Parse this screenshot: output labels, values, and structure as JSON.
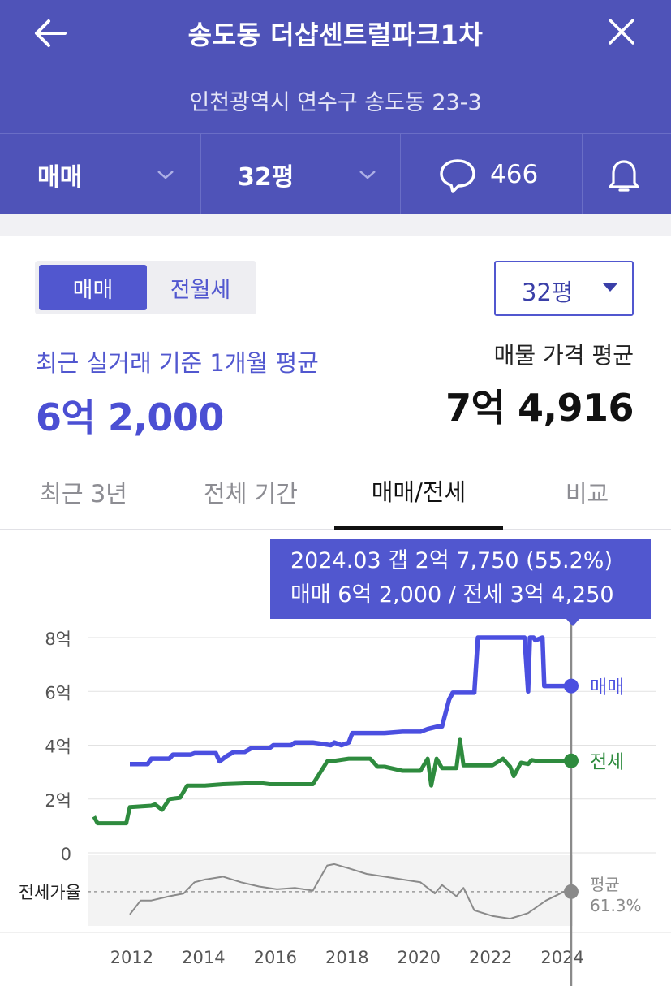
{
  "header": {
    "title": "송도동 더샵센트럴파크1차",
    "address": "인천광역시 연수구 송도동 23-3",
    "trade_select": "매매",
    "size_select": "32평",
    "comment_count": "466"
  },
  "segment": {
    "sale": "매매",
    "rent": "전월세"
  },
  "size_dropdown": "32평",
  "summary": {
    "recent_label": "최근 실거래 기준 1개월 평균",
    "recent_value": "6억 2,000",
    "listing_label": "매물 가격 평균",
    "listing_value": "7억 4,916"
  },
  "tabs": [
    "최근 3년",
    "전체 기간",
    "매매/전세",
    "비교"
  ],
  "tooltip": {
    "line1": "2024.03  갭 2억 7,750 (55.2%)",
    "line2": "매매 6억 2,000 / 전세 3억 4,250"
  },
  "colors": {
    "brand": "#4f53b8",
    "sale": "#4b4fe0",
    "jeonse": "#2e8b3e",
    "ratio": "#8a8a8a"
  },
  "chart_data": {
    "type": "line",
    "y_tick_labels": [
      "8억",
      "6억",
      "4억",
      "2억",
      "0"
    ],
    "x_tick_labels": [
      "2012",
      "2014",
      "2016",
      "2018",
      "2020",
      "2022",
      "2024"
    ],
    "ylim": [
      0,
      8
    ],
    "y_unit": "억",
    "ratio_label": "전세가율",
    "series": [
      {
        "name": "매매",
        "x": [
          2011.9,
          2012.4,
          2012.5,
          2013.0,
          2013.1,
          2013.6,
          2013.7,
          2014.3,
          2014.4,
          2014.6,
          2014.8,
          2015.1,
          2015.3,
          2015.8,
          2015.9,
          2016.4,
          2016.5,
          2017.0,
          2017.5,
          2017.6,
          2017.8,
          2018.0,
          2018.1,
          2019.0,
          2019.5,
          2020.0,
          2020.2,
          2020.5,
          2020.6,
          2020.8,
          2020.9,
          2021.5,
          2021.6,
          2022.0,
          2022.5,
          2022.9,
          2023.0,
          2023.05,
          2023.15,
          2023.2,
          2023.4,
          2023.45,
          2023.6,
          2024.0,
          2024.2
        ],
        "y": [
          3.3,
          3.3,
          3.5,
          3.5,
          3.65,
          3.65,
          3.7,
          3.7,
          3.4,
          3.6,
          3.75,
          3.75,
          3.9,
          3.9,
          4.0,
          4.0,
          4.1,
          4.1,
          4.0,
          4.1,
          4.0,
          4.1,
          4.45,
          4.45,
          4.5,
          4.5,
          4.6,
          4.7,
          4.7,
          5.7,
          5.95,
          5.95,
          8.0,
          8.0,
          8.0,
          8.0,
          6.0,
          8.0,
          8.0,
          7.9,
          8.0,
          6.2,
          6.2,
          6.2,
          6.2
        ]
      },
      {
        "name": "전세",
        "x": [
          2010.9,
          2011.0,
          2011.8,
          2011.9,
          2012.5,
          2012.6,
          2012.8,
          2013.0,
          2013.3,
          2013.5,
          2014.0,
          2014.5,
          2015.5,
          2015.8,
          2016.0,
          2016.5,
          2017.0,
          2017.4,
          2017.5,
          2018.0,
          2018.6,
          2018.8,
          2019.0,
          2019.5,
          2020.0,
          2020.2,
          2020.3,
          2020.45,
          2020.6,
          2021.0,
          2021.1,
          2021.2,
          2021.5,
          2022.0,
          2022.3,
          2022.5,
          2022.6,
          2022.8,
          2023.0,
          2023.1,
          2023.3,
          2023.6,
          2024.0,
          2024.2
        ],
        "y": [
          1.35,
          1.1,
          1.1,
          1.7,
          1.75,
          1.8,
          1.6,
          2.0,
          2.05,
          2.5,
          2.5,
          2.55,
          2.6,
          2.55,
          2.55,
          2.55,
          2.55,
          3.4,
          3.4,
          3.5,
          3.5,
          3.2,
          3.2,
          3.05,
          3.05,
          3.5,
          2.5,
          3.5,
          3.15,
          3.15,
          4.2,
          3.25,
          3.25,
          3.25,
          3.5,
          3.2,
          2.85,
          3.35,
          3.3,
          3.45,
          3.4,
          3.4,
          3.42,
          3.42
        ]
      },
      {
        "name": "전세가율",
        "x": [
          2011.9,
          2012.2,
          2012.5,
          2013.0,
          2013.4,
          2013.7,
          2014.0,
          2014.5,
          2015.0,
          2015.5,
          2016.0,
          2016.5,
          2017.0,
          2017.4,
          2017.6,
          2018.0,
          2018.5,
          2019.0,
          2019.5,
          2020.0,
          2020.4,
          2020.6,
          2021.0,
          2021.2,
          2021.5,
          2022.0,
          2022.5,
          2023.0,
          2023.5,
          2024.0,
          2024.2
        ],
        "y": [
          45,
          55,
          55,
          58,
          60,
          68,
          70,
          72,
          68,
          65,
          63,
          64,
          62,
          80,
          81,
          78,
          74,
          72,
          70,
          68,
          60,
          66,
          58,
          64,
          48,
          44,
          42,
          46,
          55,
          61.3,
          61.3
        ]
      }
    ],
    "end_labels": {
      "sale": "매매",
      "jeonse": "전세",
      "ratio_label": "평균",
      "ratio_value": "61.3%"
    }
  }
}
